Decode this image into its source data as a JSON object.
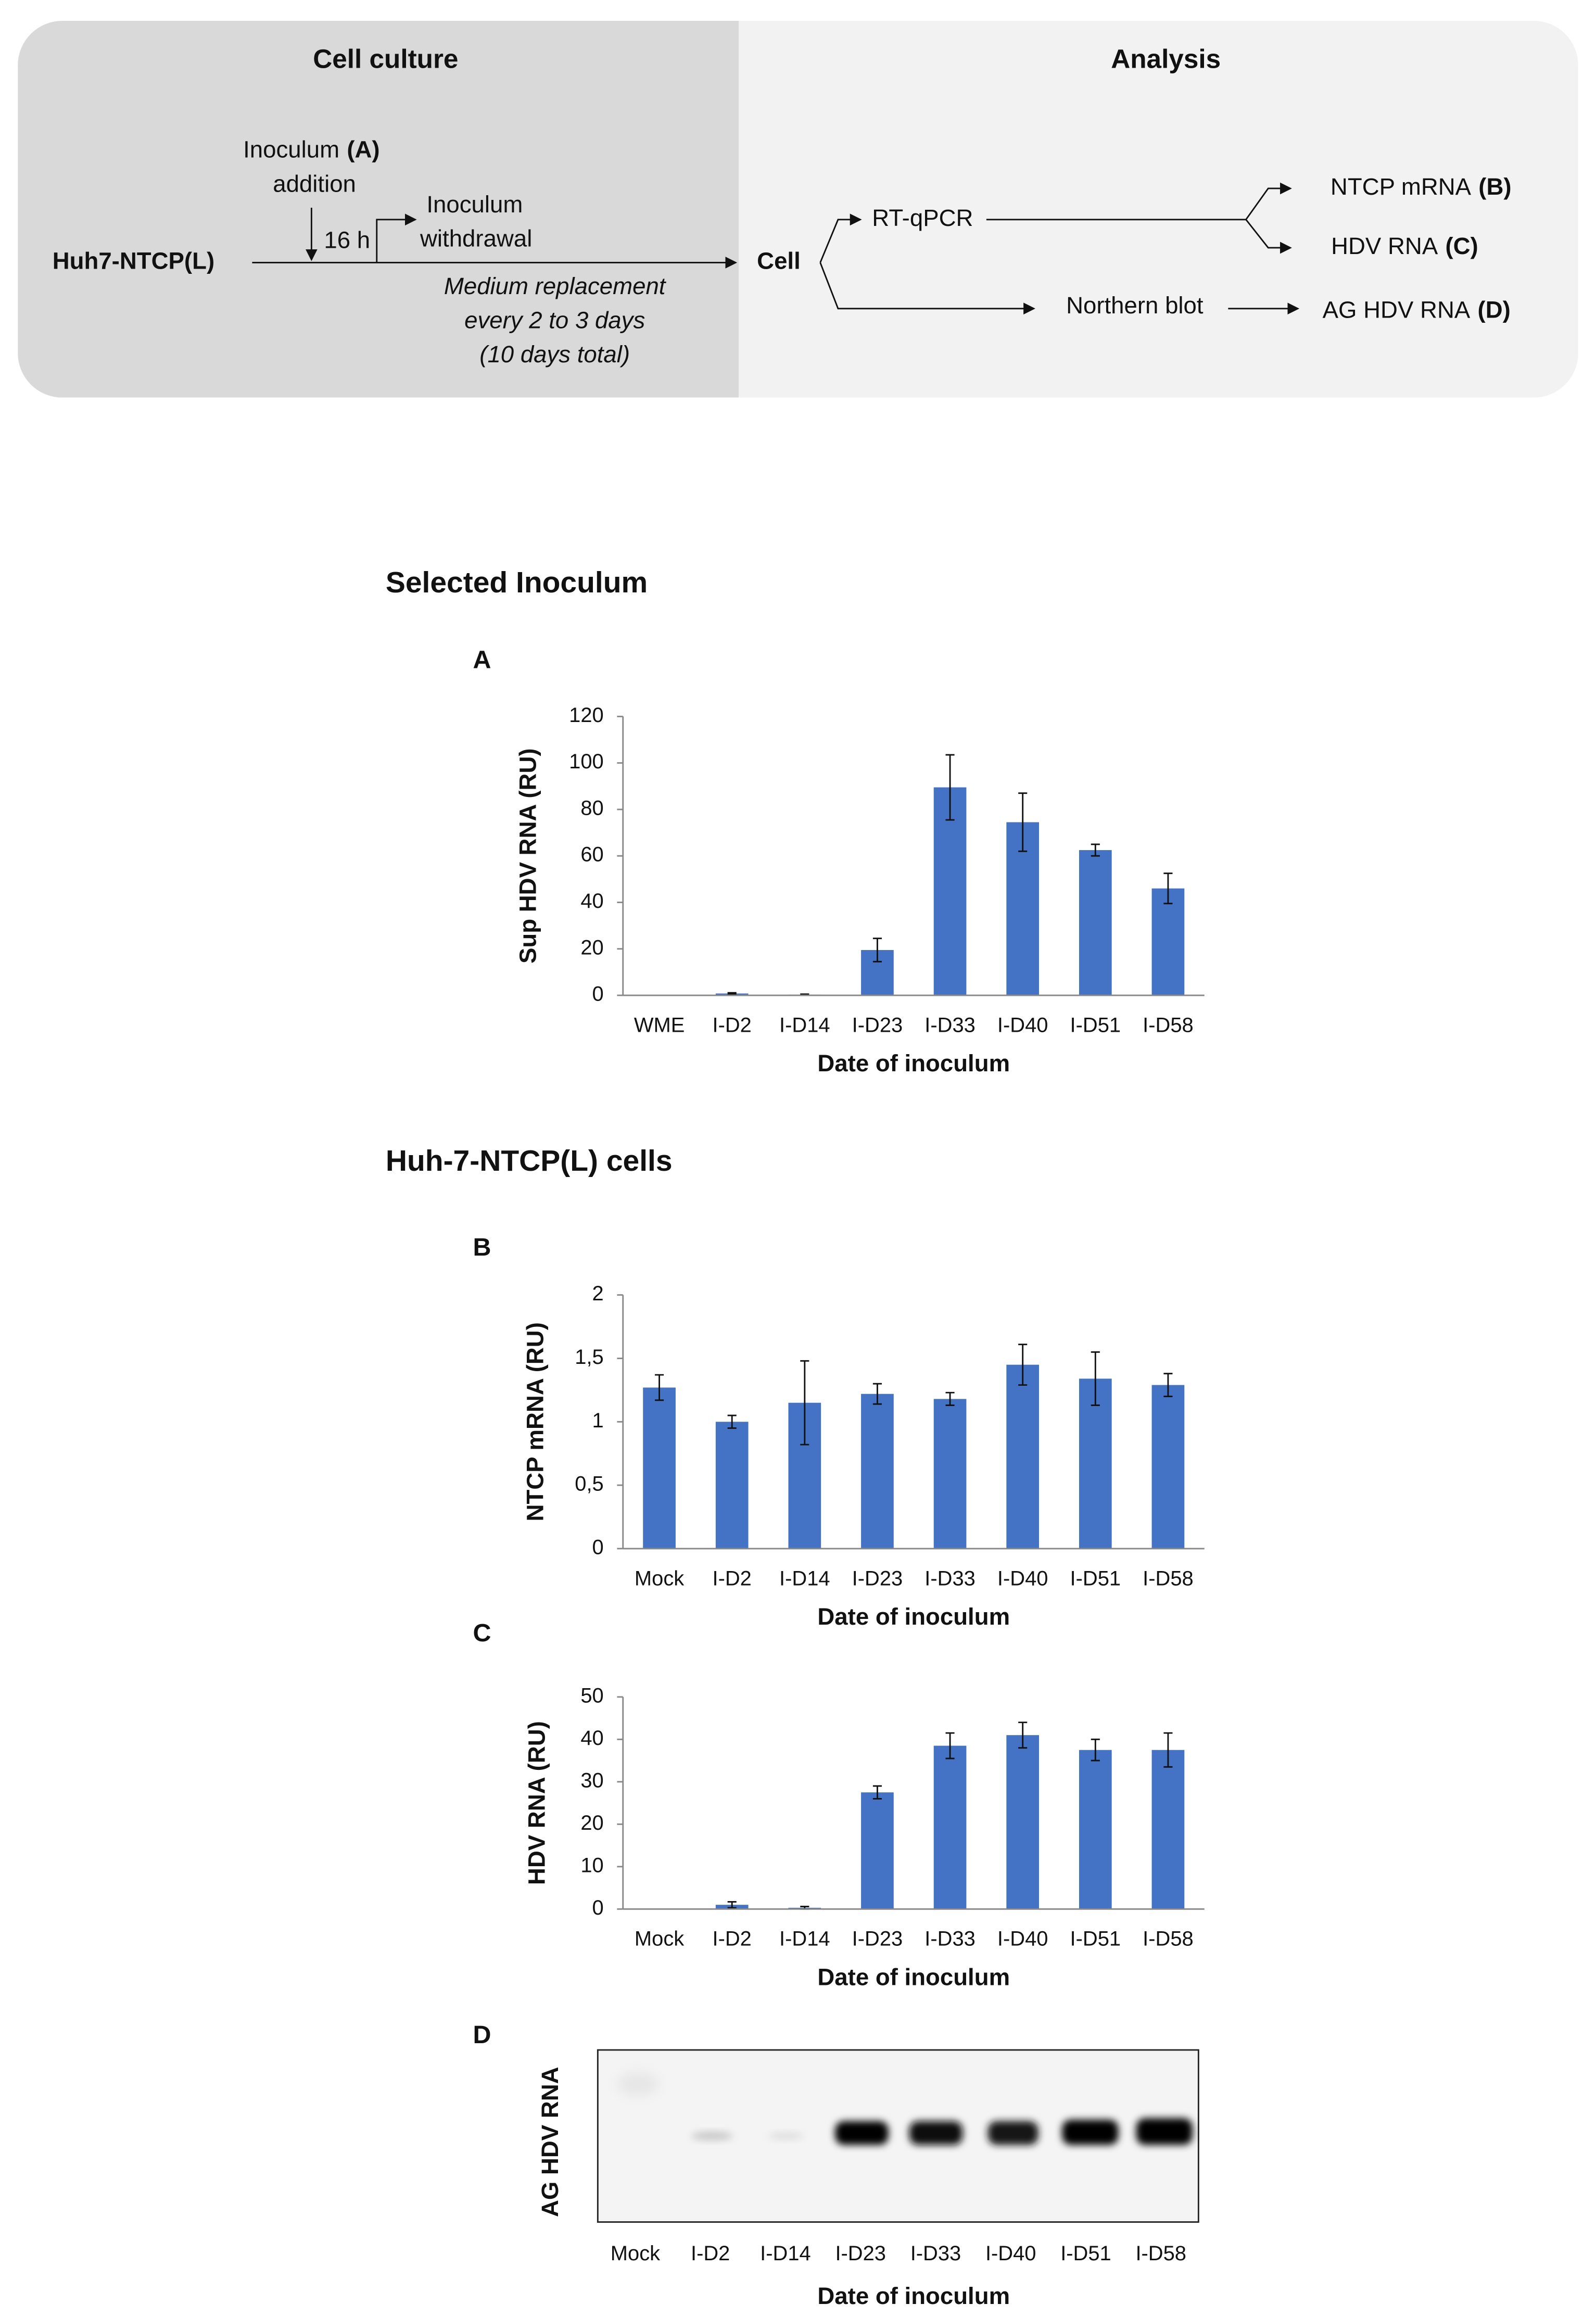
{
  "diagram": {
    "left_title": "Cell culture",
    "right_title": "Analysis",
    "inoculum_addition": {
      "word": "Inoculum",
      "ref": "(A)",
      "line2": "addition"
    },
    "time": "16 h",
    "withdrawal": {
      "line1": "Inoculum",
      "line2": "withdrawal"
    },
    "cell_line": "Huh7-NTCP(L)",
    "medium": [
      "Medium replacement",
      "every 2 to 3 days",
      "(10 days total)"
    ],
    "cell": "Cell",
    "rtqpcr": "RT-qPCR",
    "northern": "Northern blot",
    "out_b": {
      "text": "NTCP mRNA",
      "ref": "(B)"
    },
    "out_c": {
      "text": "HDV RNA",
      "ref": "(C)"
    },
    "out_d": {
      "text": "AG HDV RNA",
      "ref": "(D)"
    }
  },
  "sections": [
    "Selected Inoculum",
    "Huh-7-NTCP(L) cells"
  ],
  "chart_data": [
    {
      "type": "bar",
      "panel": "A",
      "ylabel": "Sup HDV RNA (RU)",
      "xlabel": "Date of inoculum",
      "categories": [
        "WME",
        "I-D2",
        "I-D14",
        "I-D23",
        "I-D33",
        "I-D40",
        "I-D51",
        "I-D58"
      ],
      "values": [
        0,
        0.8,
        0.3,
        19.5,
        89.5,
        74.5,
        62.5,
        46
      ],
      "errors": [
        0,
        0.3,
        0.2,
        5,
        14,
        12.5,
        2.5,
        6.5
      ],
      "color": "#4472c4",
      "ylim": [
        0,
        120
      ],
      "yticks": [
        0,
        20,
        40,
        60,
        80,
        100,
        120
      ],
      "grid": false
    },
    {
      "type": "bar",
      "panel": "B",
      "ylabel": "NTCP mRNA (RU)",
      "xlabel": "Date of inoculum",
      "categories": [
        "Mock",
        "I-D2",
        "I-D14",
        "I-D23",
        "I-D33",
        "I-D40",
        "I-D51",
        "I-D58"
      ],
      "values": [
        1.27,
        1.0,
        1.15,
        1.22,
        1.18,
        1.45,
        1.34,
        1.29
      ],
      "errors": [
        0.1,
        0.05,
        0.33,
        0.08,
        0.05,
        0.16,
        0.21,
        0.09
      ],
      "color": "#4472c4",
      "ylim": [
        0,
        2
      ],
      "yticks": [
        0,
        {
          "value": 0.5,
          "label": "0,5"
        },
        1,
        {
          "value": 1.5,
          "label": "1,5"
        },
        2
      ],
      "grid": false
    },
    {
      "type": "bar",
      "panel": "C",
      "ylabel": "HDV RNA (RU)",
      "xlabel": "Date of inoculum",
      "categories": [
        "Mock",
        "I-D2",
        "I-D14",
        "I-D23",
        "I-D33",
        "I-D40",
        "I-D51",
        "I-D58"
      ],
      "values": [
        0,
        1,
        0.3,
        27.5,
        38.5,
        41,
        37.5,
        37.5
      ],
      "errors": [
        0,
        0.7,
        0.3,
        1.5,
        3,
        3,
        2.5,
        4
      ],
      "color": "#4472c4",
      "ylim": [
        0,
        50
      ],
      "yticks": [
        0,
        10,
        20,
        30,
        40,
        50
      ],
      "grid": false
    }
  ],
  "blot": {
    "panel": "D",
    "ylabel": "AG HDV RNA",
    "xlabel": "Date of inoculum",
    "lanes": [
      "Mock",
      "I-D2",
      "I-D14",
      "I-D23",
      "I-D33",
      "I-D40",
      "I-D51",
      "I-D58"
    ]
  }
}
